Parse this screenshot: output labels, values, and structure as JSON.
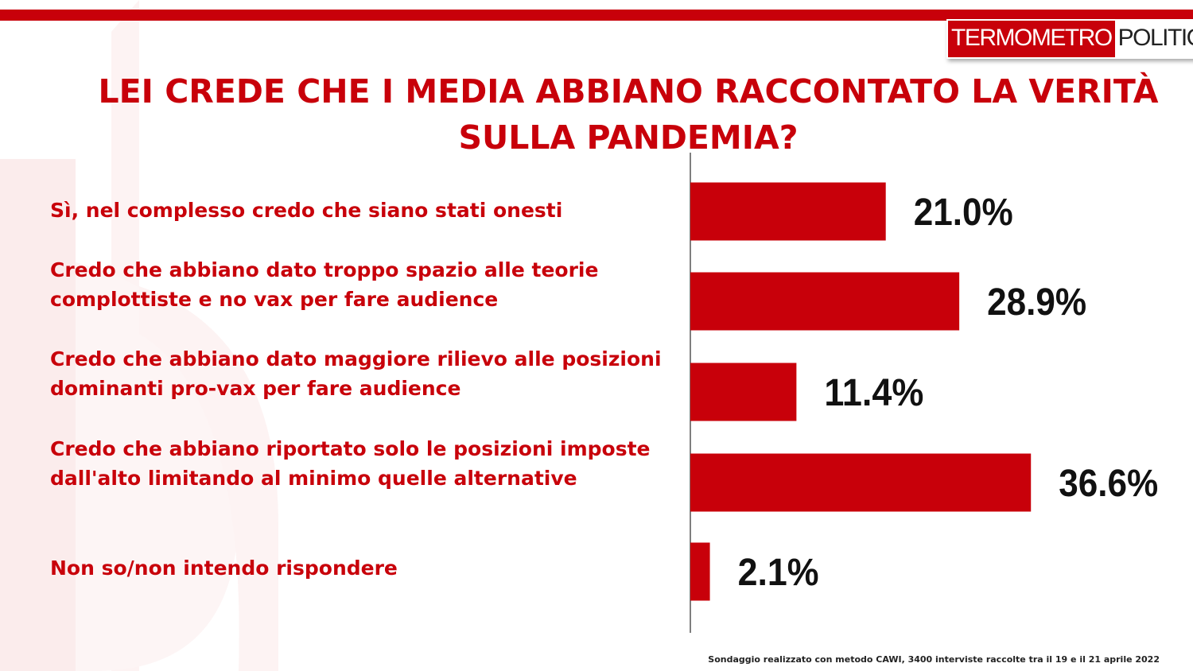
{
  "header": {
    "logo_part1": "TERMOMETRO",
    "logo_part2": "POLITICO",
    "title": "LEI CREDE CHE I MEDIA ABBIANO RACCONTATO LA VERITÀ SULLA PANDEMIA?"
  },
  "colors": {
    "accent": "#c8000a",
    "text_dark": "#111111"
  },
  "chart_data": {
    "type": "bar",
    "orientation": "horizontal",
    "title": "LEI CREDE CHE I MEDIA ABBIANO RACCONTATO LA VERITÀ SULLA PANDEMIA?",
    "categories": [
      "Sì, nel complesso credo che siano stati onesti",
      "Credo che abbiano dato troppo spazio alle teorie complottiste e no vax per fare audience",
      "Credo che abbiano dato maggiore rilievo alle posizioni dominanti pro-vax per fare audience",
      "Credo che abbiano riportato solo le posizioni imposte dall'alto limitando al minimo quelle alternative",
      "Non so/non intendo rispondere"
    ],
    "values": [
      21.0,
      28.9,
      11.4,
      36.6,
      2.1
    ],
    "value_labels": [
      "21.0%",
      "28.9%",
      "11.4%",
      "36.6%",
      "2.1%"
    ],
    "unit": "%",
    "xlim": [
      0,
      100
    ],
    "grid": false,
    "legend": "none"
  },
  "footer": {
    "note": "Sondaggio realizzato con metodo CAWI, 3400 interviste raccolte tra il 19 e il 21 aprile 2022"
  }
}
